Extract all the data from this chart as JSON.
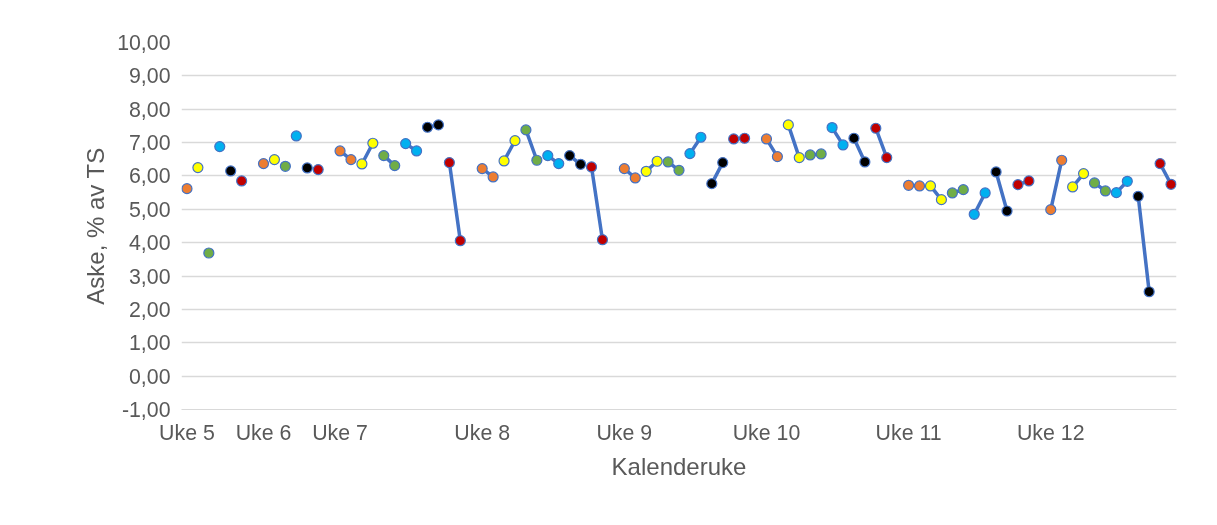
{
  "chart_data": {
    "type": "scatter",
    "xlabel": "Kalenderuke",
    "ylabel": "Aske, % av TS",
    "categories": [
      "Uke 5",
      null,
      null,
      null,
      null,
      null,
      null,
      "Uke 6",
      null,
      null,
      null,
      null,
      null,
      null,
      "Uke 7",
      null,
      null,
      null,
      null,
      null,
      null,
      null,
      null,
      null,
      null,
      null,
      null,
      "Uke 8",
      null,
      null,
      null,
      null,
      null,
      null,
      null,
      null,
      null,
      null,
      null,
      null,
      "Uke 9",
      null,
      null,
      null,
      null,
      null,
      null,
      null,
      null,
      null,
      null,
      null,
      null,
      "Uke 10",
      null,
      null,
      null,
      null,
      null,
      null,
      null,
      null,
      null,
      null,
      null,
      null,
      "Uke 11",
      null,
      null,
      null,
      null,
      null,
      null,
      null,
      null,
      null,
      null,
      null,
      null,
      "Uke 12",
      null,
      null,
      null,
      null,
      null,
      null,
      null,
      null,
      null,
      null,
      null
    ],
    "ylim": [
      -1,
      10
    ],
    "yticks": [
      {
        "value": -1,
        "label": "-1,00"
      },
      {
        "value": 0,
        "label": "0,00"
      },
      {
        "value": 1,
        "label": "1,00"
      },
      {
        "value": 2,
        "label": "2,00"
      },
      {
        "value": 3,
        "label": "3,00"
      },
      {
        "value": 4,
        "label": "4,00"
      },
      {
        "value": 5,
        "label": "5,00"
      },
      {
        "value": 6,
        "label": "6,00"
      },
      {
        "value": 7,
        "label": "7,00"
      },
      {
        "value": 8,
        "label": "8,00"
      },
      {
        "value": 9,
        "label": "9,00"
      },
      {
        "value": 10,
        "label": "10,00"
      }
    ],
    "grid": "y",
    "series": [
      {
        "type": "line",
        "color": "#4472c4",
        "values": [
          null,
          null,
          null,
          null,
          null,
          null,
          null,
          null,
          null,
          null,
          null,
          null,
          null,
          null,
          6.75,
          6.49,
          null,
          null,
          6.61,
          6.31,
          null,
          null,
          7.46,
          7.53,
          null,
          null,
          null,
          6.22,
          5.97,
          null,
          null,
          7.38,
          6.47,
          null,
          null,
          6.61,
          6.35,
          null,
          null,
          null,
          6.22,
          5.94,
          null,
          null,
          6.42,
          6.17,
          null,
          null,
          5.77,
          6.4,
          null,
          null,
          null,
          7.11,
          6.58,
          null,
          null,
          6.63,
          6.66,
          null,
          null,
          7.13,
          6.42,
          null,
          null,
          null,
          5.72,
          5.7,
          null,
          null,
          5.49,
          5.59,
          null,
          null,
          6.12,
          4.95,
          null,
          null,
          null,
          4.99,
          6.47,
          null,
          null,
          5.79,
          5.55,
          null,
          null,
          5.39,
          2.53,
          null,
          null
        ]
      },
      {
        "type": "line",
        "color": "#4473c5",
        "values": [
          null,
          null,
          null,
          null,
          null,
          null,
          null,
          null,
          null,
          null,
          null,
          null,
          null,
          null,
          null,
          null,
          6.36,
          6.98,
          null,
          null,
          6.97,
          6.75,
          null,
          null,
          6.4,
          4.06,
          null,
          null,
          null,
          6.45,
          7.06,
          null,
          null,
          6.61,
          6.37,
          null,
          null,
          6.27,
          4.09,
          null,
          null,
          null,
          6.14,
          6.44,
          null,
          null,
          6.67,
          7.16,
          null,
          null,
          7.11,
          7.13,
          null,
          null,
          null,
          7.53,
          6.55,
          null,
          null,
          7.45,
          6.93,
          null,
          null,
          7.43,
          6.55,
          null,
          null,
          null,
          5.7,
          5.29,
          null,
          null,
          4.85,
          5.49,
          null,
          null,
          5.74,
          5.85,
          null,
          null,
          null,
          5.67,
          6.07,
          null,
          null,
          5.5,
          5.84,
          null,
          null,
          6.37,
          5.75
        ]
      },
      {
        "marker": "circle",
        "values": [
          5.62,
          6.25,
          3.69,
          6.88,
          6.15,
          5.85,
          null,
          6.37,
          6.49,
          6.29,
          7.2,
          6.24,
          6.19,
          null,
          6.75,
          6.49,
          6.36,
          6.98,
          6.61,
          6.31,
          6.97,
          6.75,
          7.46,
          7.53,
          6.4,
          4.06,
          null,
          6.22,
          5.97,
          6.45,
          7.06,
          7.38,
          6.47,
          6.61,
          6.37,
          6.61,
          6.35,
          6.27,
          4.09,
          null,
          6.22,
          5.94,
          6.14,
          6.44,
          6.42,
          6.17,
          6.67,
          7.16,
          5.77,
          6.4,
          7.11,
          7.13,
          null,
          7.11,
          6.58,
          7.53,
          6.55,
          6.63,
          6.66,
          7.45,
          6.93,
          7.13,
          6.42,
          7.43,
          6.55,
          null,
          5.72,
          5.7,
          5.7,
          5.29,
          5.49,
          5.59,
          4.85,
          5.49,
          6.12,
          4.95,
          5.74,
          5.85,
          null,
          4.99,
          6.47,
          5.67,
          6.07,
          5.79,
          5.55,
          5.5,
          5.84,
          5.39,
          2.53,
          6.37,
          5.75
        ],
        "colors": [
          "#ed7d31",
          "#ffff00",
          "#70ad47",
          "#00b0f0",
          "#000000",
          "#c00000",
          null,
          "#ed7d31",
          "#ffff00",
          "#70ad47",
          "#00b0f0",
          "#000000",
          "#c00000",
          null,
          "#ed7d31",
          "#ed7d31",
          "#ffff00",
          "#ffff00",
          "#70ad47",
          "#70ad47",
          "#00b0f0",
          "#00b0f0",
          "#000000",
          "#000000",
          "#c00000",
          "#c00000",
          null,
          "#ed7d31",
          "#ed7d31",
          "#ffff00",
          "#ffff00",
          "#70ad47",
          "#70ad47",
          "#00b0f0",
          "#00b0f0",
          "#000000",
          "#000000",
          "#c00000",
          "#c00000",
          null,
          "#ed7d31",
          "#ed7d31",
          "#ffff00",
          "#ffff00",
          "#70ad47",
          "#70ad47",
          "#00b0f0",
          "#00b0f0",
          "#000000",
          "#000000",
          "#c00000",
          "#c00000",
          null,
          "#ed7d31",
          "#ed7d31",
          "#ffff00",
          "#ffff00",
          "#70ad47",
          "#70ad47",
          "#00b0f0",
          "#00b0f0",
          "#000000",
          "#000000",
          "#c00000",
          "#c00000",
          null,
          "#ed7d31",
          "#ed7d31",
          "#ffff00",
          "#ffff00",
          "#70ad47",
          "#70ad47",
          "#00b0f0",
          "#00b0f0",
          "#000000",
          "#000000",
          "#c00000",
          "#c00000",
          null,
          "#ed7d31",
          "#ed7d31",
          "#ffff00",
          "#ffff00",
          "#70ad47",
          "#70ad47",
          "#00b0f0",
          "#00b0f0",
          "#000000",
          "#000000",
          "#c00000",
          "#c00000"
        ]
      }
    ]
  }
}
